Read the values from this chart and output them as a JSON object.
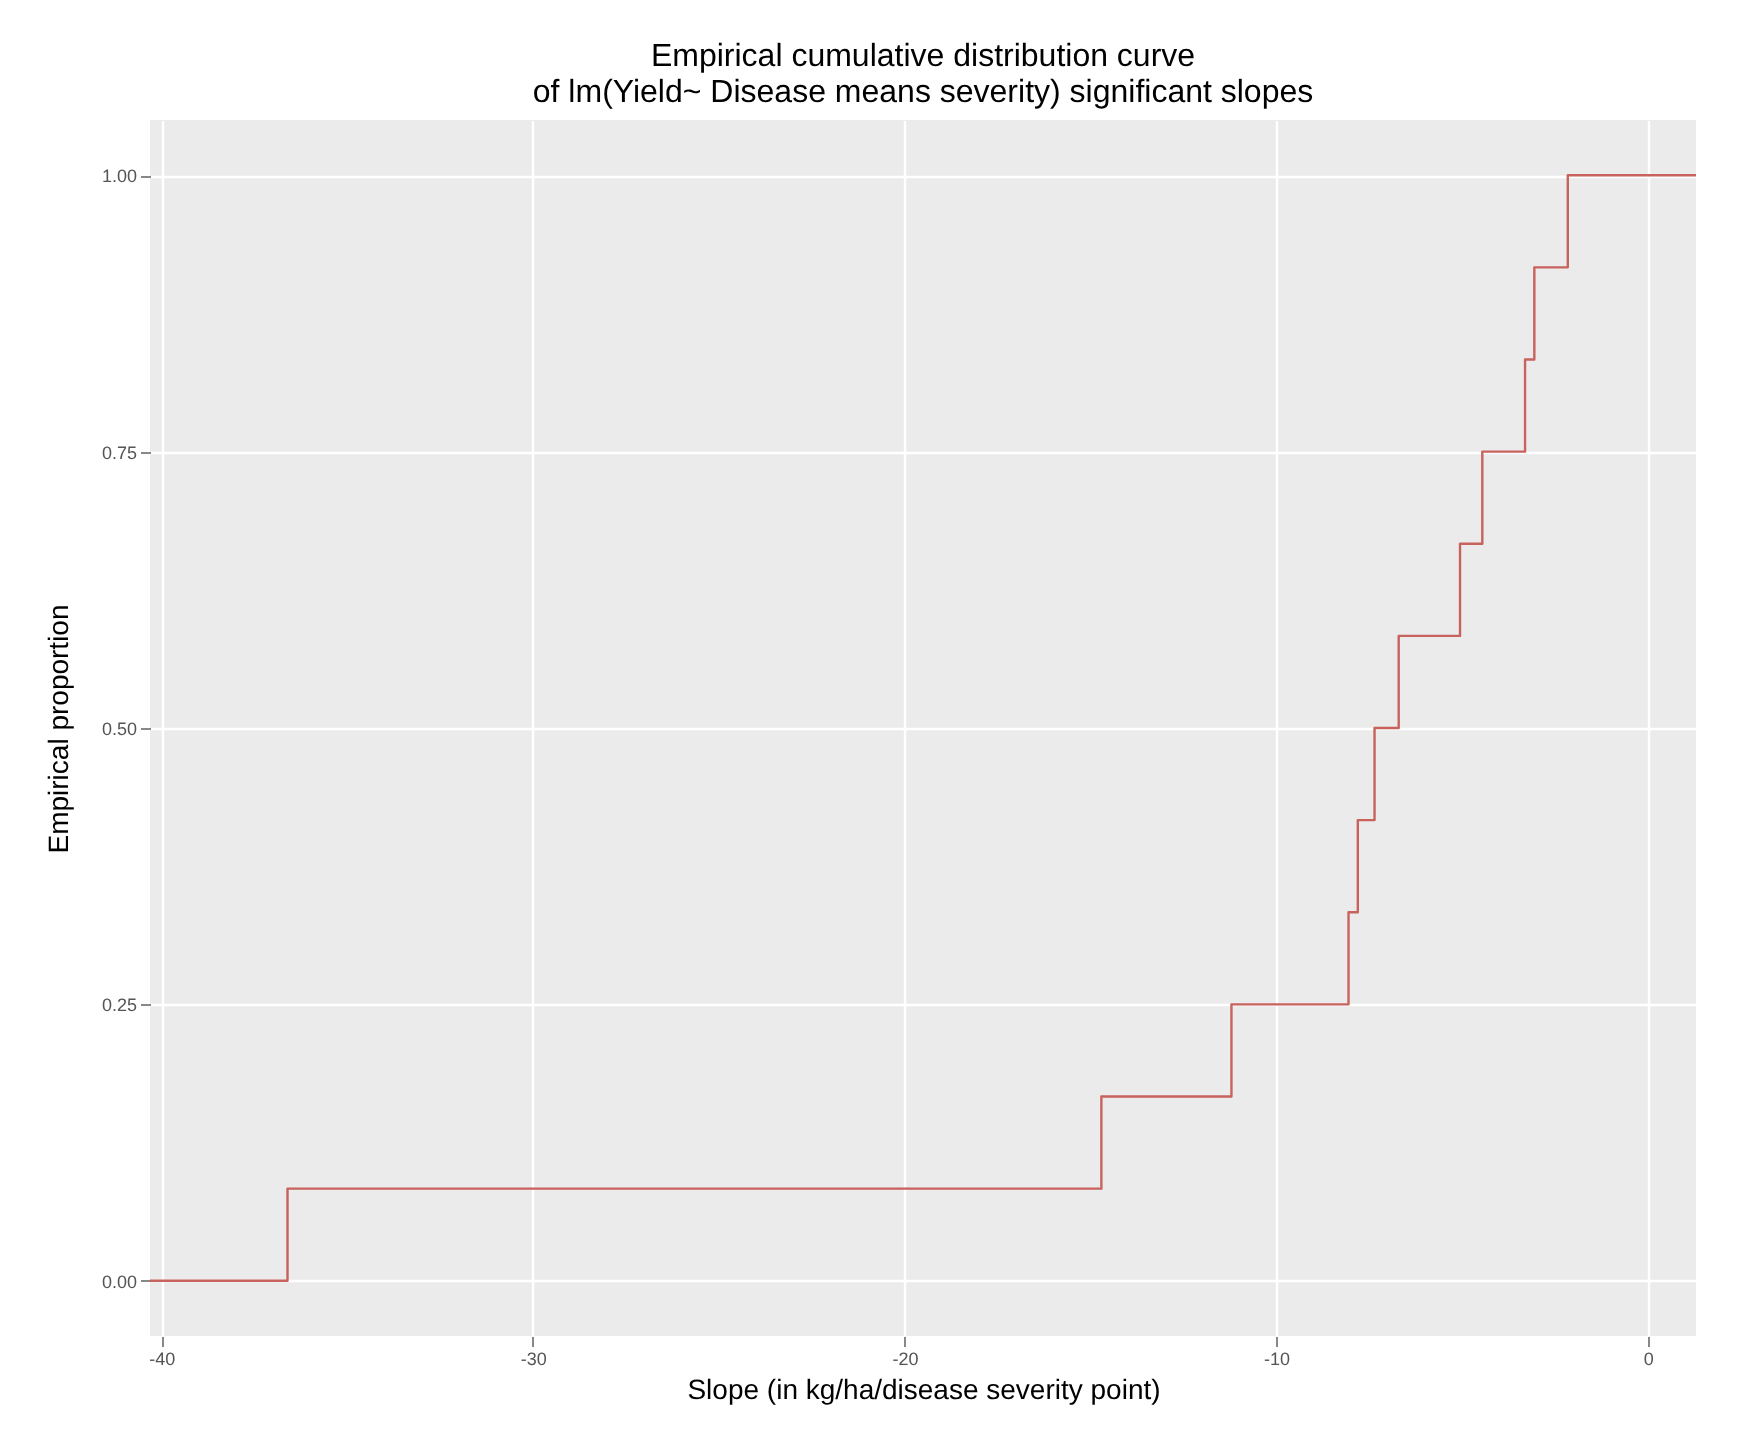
{
  "chart_data": {
    "type": "step",
    "title": "Empirical cumulative distribution curve",
    "subtitle": "of lm(Yield~ Disease means severity) significant slopes",
    "xlabel": "Slope (in kg/ha/disease severity point)",
    "ylabel": "Empirical proportion",
    "x": [
      -40.3,
      -36.6,
      -14.7,
      -11.2,
      -8.05,
      -7.8,
      -7.35,
      -6.7,
      -5.05,
      -4.45,
      -3.3,
      -3.05,
      -2.15,
      1.3
    ],
    "series": [
      {
        "color": "#c8625d",
        "values": [
          0,
          0.0833,
          0.1667,
          0.25,
          0.3333,
          0.4167,
          0.5,
          0.5833,
          0.6667,
          0.75,
          0.8333,
          0.9167,
          1,
          1
        ]
      }
    ],
    "xlim": [
      -40.3,
      1.3
    ],
    "xticks": [
      -40,
      -30,
      -20,
      -10,
      0
    ],
    "ylim": [
      -0.05,
      1.05
    ],
    "yticks": [
      {
        "value": 0,
        "label": "0.00"
      },
      {
        "value": 0.25,
        "label": "0.25"
      },
      {
        "value": 0.5,
        "label": "0.50"
      },
      {
        "value": 0.75,
        "label": "0.75"
      },
      {
        "value": 1,
        "label": "1.00"
      }
    ],
    "grid": true
  }
}
